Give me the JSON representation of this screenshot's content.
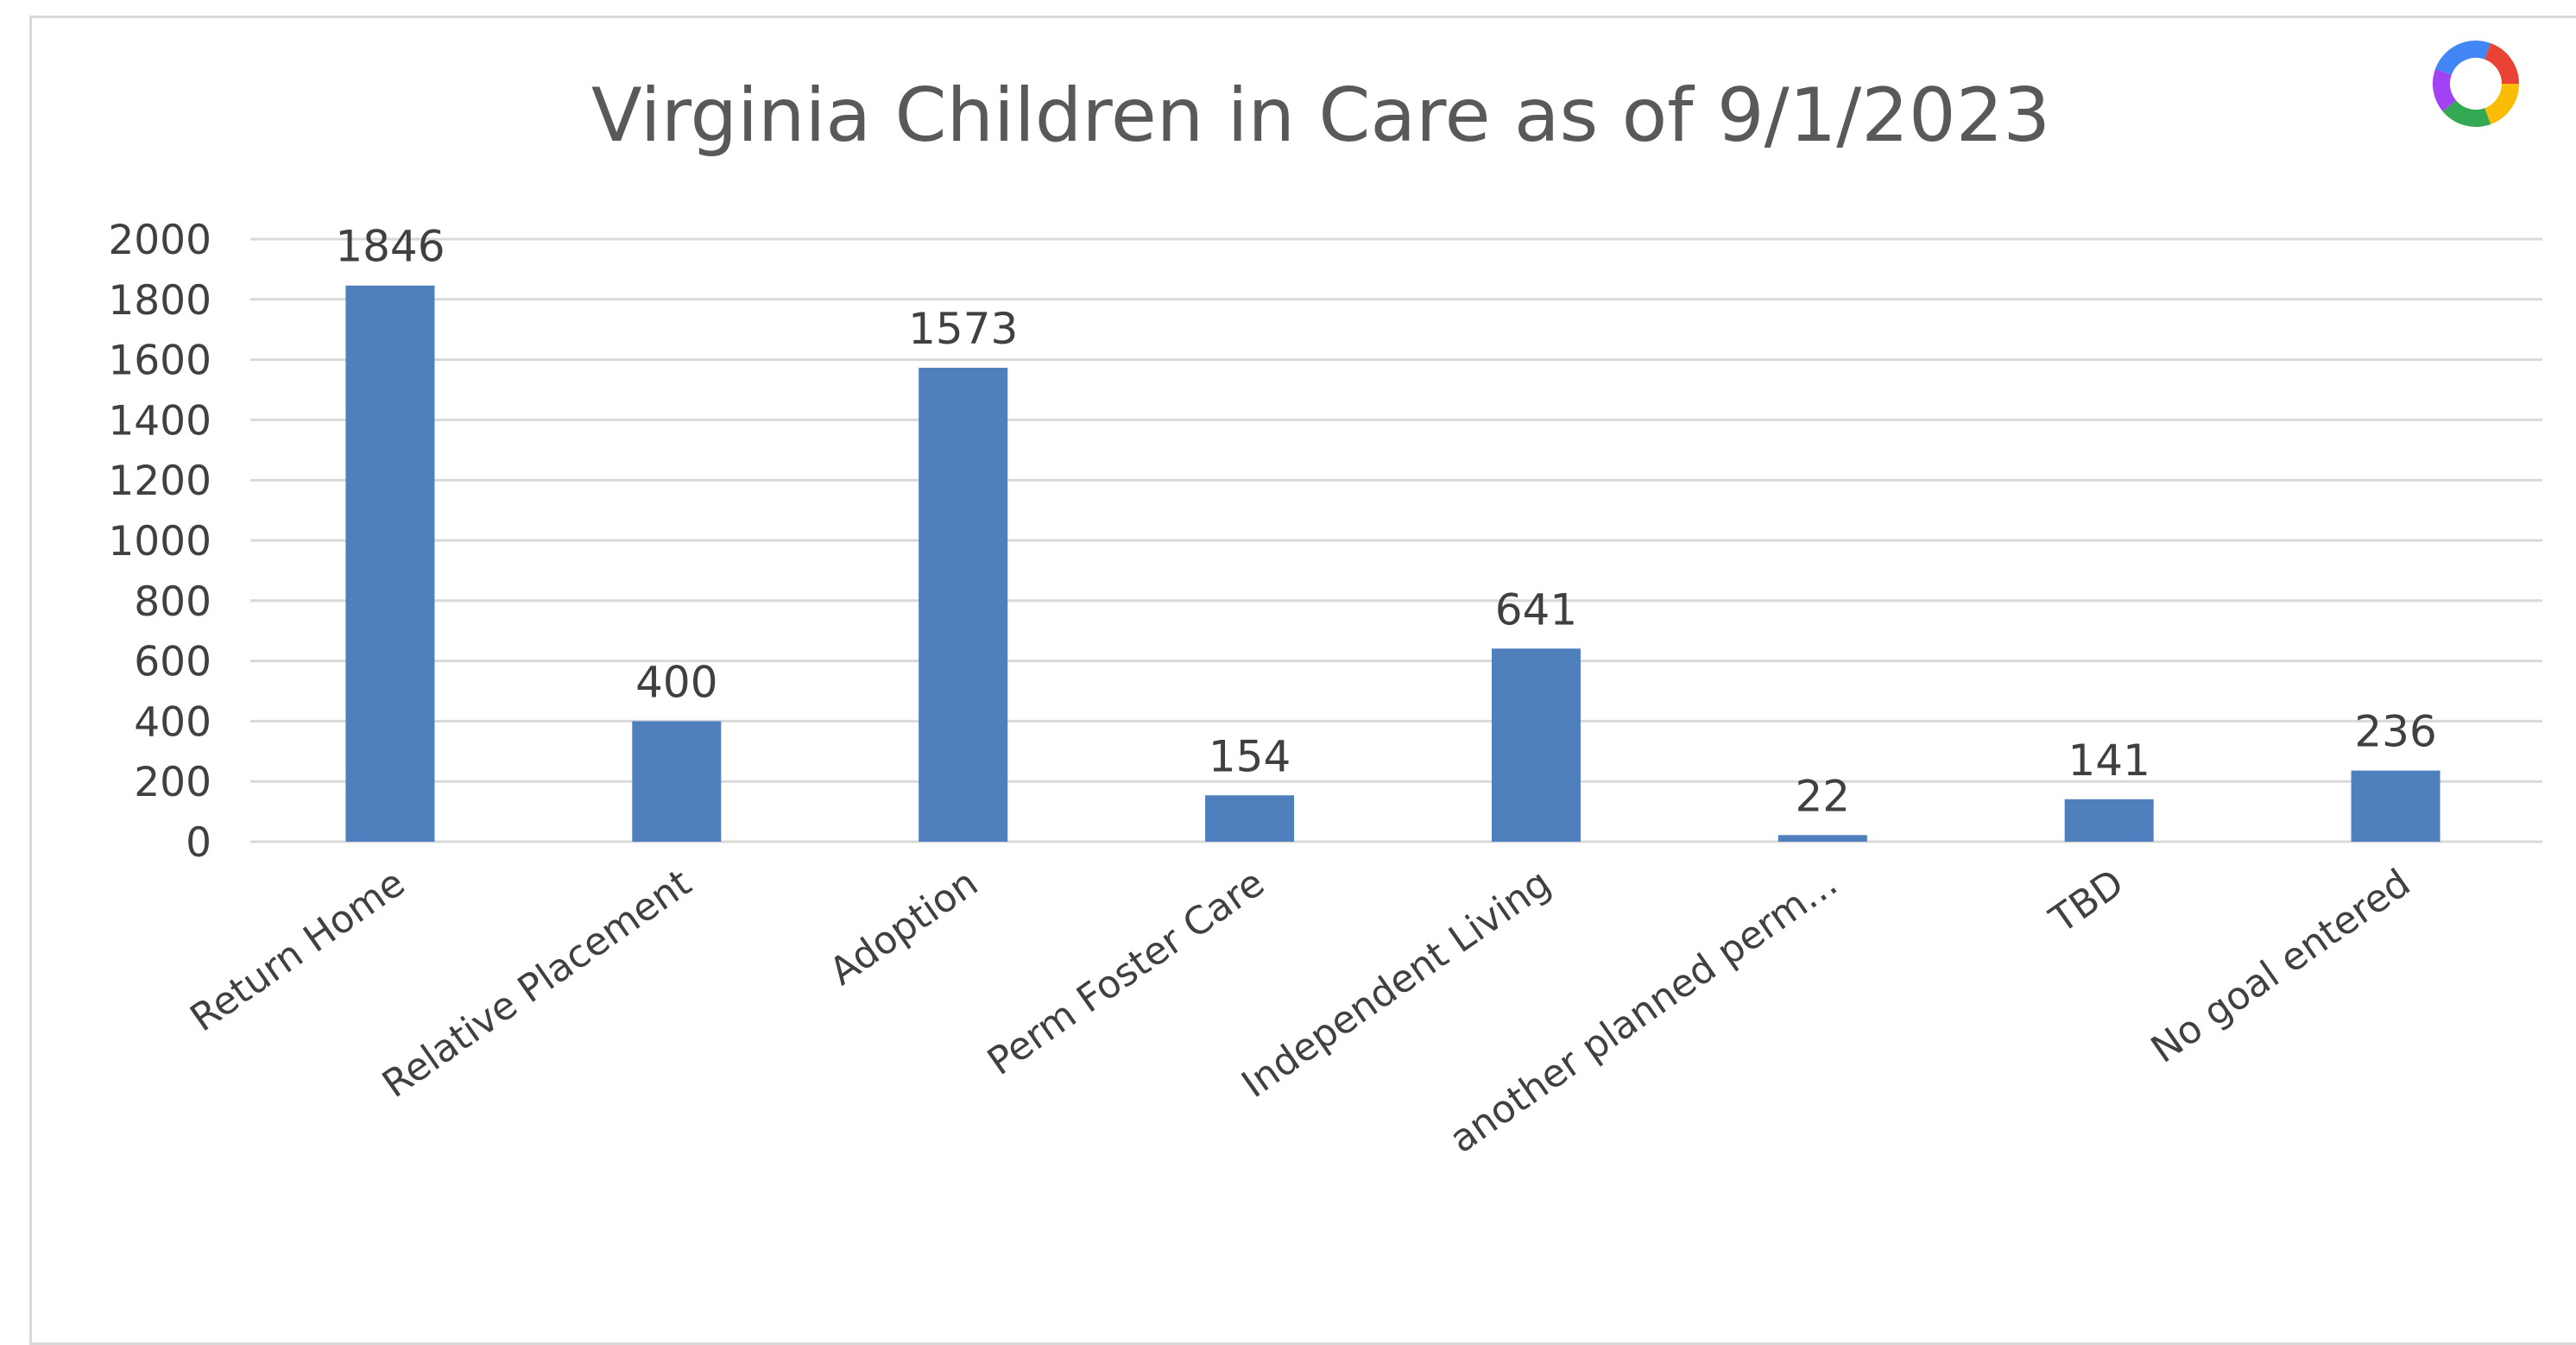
{
  "chart_data": {
    "type": "bar",
    "title": "Virginia Children in Care as of 9/1/2023",
    "categories": [
      "Return Home",
      "Relative Placement",
      "Adoption",
      "Perm Foster Care",
      "Independent Living",
      "another planned perm...",
      "TBD",
      "No goal entered"
    ],
    "values": [
      1846,
      400,
      1573,
      154,
      641,
      22,
      141,
      236
    ],
    "data_labels": [
      "1846",
      "400",
      "1573",
      "154",
      "641",
      "22",
      "141",
      "236"
    ],
    "yticks": [
      "0",
      "200",
      "400",
      "600",
      "800",
      "1000",
      "1200",
      "1400",
      "1600",
      "1800",
      "2000"
    ],
    "ylim": [
      0,
      2000
    ],
    "grid": true,
    "bar_color": "#4f7fbd",
    "xlabel": "",
    "ylabel": ""
  },
  "logo": {
    "icon": "multicolor-ring-logo",
    "colors": [
      "#4285f4",
      "#ea4335",
      "#fbbc05",
      "#34a853",
      "#a142f4"
    ]
  }
}
